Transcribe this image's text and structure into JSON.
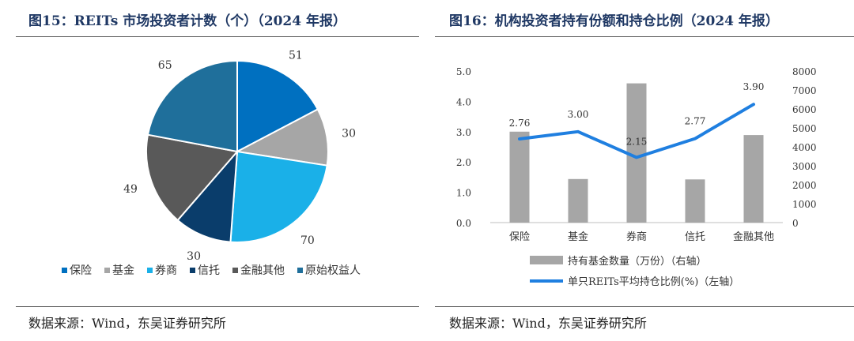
{
  "left": {
    "title": "图15：REITs 市场投资者计数（个）（2024 年报）",
    "source": "数据来源：Wind，东吴证券研究所"
  },
  "right": {
    "title": "图16：机构投资者持有份额和持仓比例（2024 年报）",
    "source": "数据来源：Wind，东吴证券研究所"
  },
  "chart_data": [
    {
      "type": "pie",
      "title": "REITs 市场投资者计数（个）（2024 年报）",
      "categories": [
        "保险",
        "基金",
        "券商",
        "信托",
        "金融其他",
        "原始权益人"
      ],
      "values": [
        51,
        30,
        70,
        30,
        49,
        65
      ],
      "colors": [
        "#0070c0",
        "#a6a6a6",
        "#1ab0e8",
        "#0a3d6b",
        "#595959",
        "#1f6f9b"
      ],
      "legend_position": "bottom"
    },
    {
      "type": "bar+line",
      "title": "机构投资者持有份额和持仓比例（2024 年报）",
      "categories": [
        "保险",
        "基金",
        "券商",
        "信托",
        "金融其他"
      ],
      "series": [
        {
          "name": "持有基金数量（万份）（右轴）",
          "type": "bar",
          "axis": "right",
          "values": [
            4800,
            2300,
            7350,
            2280,
            4620
          ],
          "color": "#a6a6a6"
        },
        {
          "name": "单只REITs平均持仓比例(%)（左轴）",
          "type": "line",
          "axis": "left",
          "values": [
            2.76,
            3.0,
            2.15,
            2.77,
            3.9
          ],
          "labels": [
            "2.76",
            "3.00",
            "2.15",
            "2.77",
            "3.90"
          ],
          "color": "#1f7fe0"
        }
      ],
      "left_axis": {
        "min": 0,
        "max": 5,
        "ticks": [
          "0.0",
          "1.0",
          "2.0",
          "3.0",
          "4.0",
          "5.0"
        ]
      },
      "right_axis": {
        "min": 0,
        "max": 8000,
        "ticks": [
          "0",
          "1000",
          "2000",
          "3000",
          "4000",
          "5000",
          "6000",
          "7000",
          "8000"
        ]
      },
      "legend_position": "bottom"
    }
  ]
}
